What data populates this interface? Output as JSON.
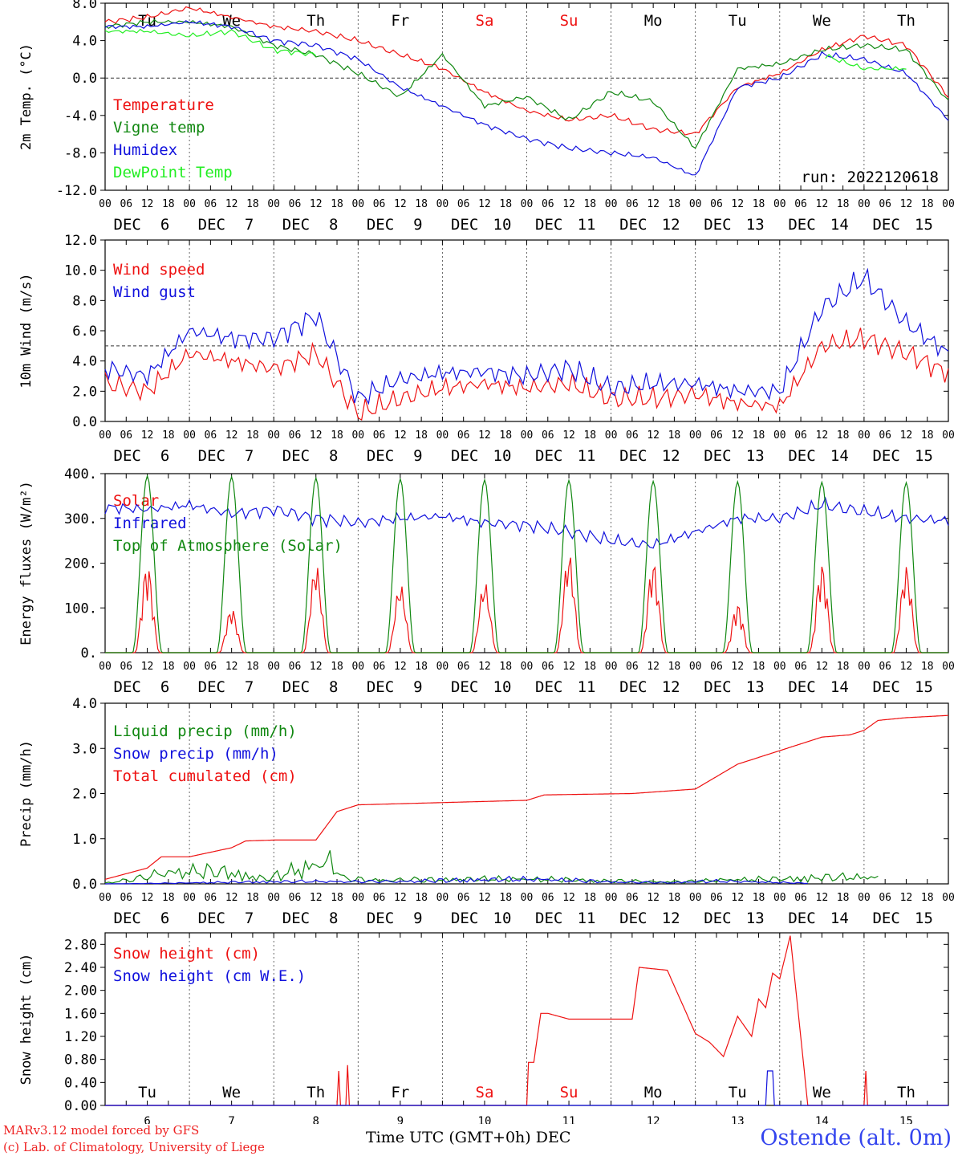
{
  "colors": {
    "red": "#ee1111",
    "green": "#118811",
    "blue": "#1111dd",
    "lime": "#22ee22",
    "axis": "#000000",
    "grid": "#444444"
  },
  "days": [
    "6",
    "7",
    "8",
    "9",
    "10",
    "11",
    "12",
    "13",
    "14",
    "15"
  ],
  "month": "DEC",
  "weekdays": [
    {
      "label": "Tu",
      "color": "#000000"
    },
    {
      "label": "We",
      "color": "#000000"
    },
    {
      "label": "Th",
      "color": "#000000"
    },
    {
      "label": "Fr",
      "color": "#000000"
    },
    {
      "label": "Sa",
      "color": "#ee1111"
    },
    {
      "label": "Su",
      "color": "#ee1111"
    },
    {
      "label": "Mo",
      "color": "#000000"
    },
    {
      "label": "Tu",
      "color": "#000000"
    },
    {
      "label": "We",
      "color": "#000000"
    },
    {
      "label": "Th",
      "color": "#000000"
    }
  ],
  "hour_labels": [
    "00",
    "06",
    "12",
    "18"
  ],
  "footer": {
    "model": "MARv3.12 model forced by GFS",
    "lab": "(c) Lab. of Climatology, University of Liege",
    "xlabel": "Time UTC (GMT+0h) DEC",
    "station": "Ostende (alt. 0m)"
  },
  "chart_data": [
    {
      "type": "line",
      "ylabel": "2m Temp. (°C)",
      "ylim": [
        -12,
        8
      ],
      "yticks": [
        "8.0",
        "4.0",
        "0.0",
        "-4.0",
        "-8.0",
        "-12.0"
      ],
      "run_label": "run: 2022120618",
      "grid": "vertical dotted at 00 UTC; dashed line at 0",
      "series": [
        {
          "name": "Temperature",
          "color": "#ee1111",
          "x": [
            0,
            12,
            24,
            36,
            48,
            60,
            72,
            84,
            96,
            108,
            120,
            132,
            144,
            156,
            168,
            180,
            192,
            204,
            216,
            228,
            240
          ],
          "y": [
            6.0,
            6.5,
            7.5,
            6.5,
            5.5,
            5.0,
            4.0,
            2.5,
            1.0,
            -1.5,
            -3.5,
            -4.5,
            -4.0,
            -5.5,
            -6.0,
            -1.0,
            0.5,
            3.0,
            4.5,
            3.5,
            -2.0
          ]
        },
        {
          "name": "Vigne temp",
          "color": "#118811",
          "x": [
            0,
            12,
            24,
            36,
            48,
            60,
            72,
            84,
            96,
            108,
            120,
            132,
            144,
            156,
            168,
            180,
            192,
            204,
            216,
            228,
            240
          ],
          "y": [
            5.5,
            6.0,
            6.0,
            5.5,
            3.5,
            2.5,
            0.5,
            -2.0,
            2.5,
            -3.0,
            -2.0,
            -4.5,
            -1.5,
            -2.5,
            -7.5,
            1.0,
            1.5,
            3.0,
            3.5,
            3.0,
            -2.5
          ]
        },
        {
          "name": "Humidex",
          "color": "#1111dd",
          "x": [
            0,
            12,
            24,
            36,
            48,
            60,
            72,
            84,
            96,
            108,
            120,
            132,
            144,
            156,
            168,
            180,
            192,
            204,
            216,
            228,
            240
          ],
          "y": [
            5.5,
            5.5,
            6.0,
            5.5,
            4.0,
            3.5,
            2.0,
            -1.0,
            -3.0,
            -5.0,
            -6.5,
            -7.5,
            -8.0,
            -8.5,
            -10.5,
            -1.0,
            0.0,
            2.5,
            2.0,
            0.5,
            -4.5
          ]
        },
        {
          "name": "DewPoint Temp",
          "color": "#22ee22",
          "x": [
            0,
            12,
            24,
            36,
            48,
            60,
            72,
            84,
            96,
            108,
            120,
            132,
            144,
            156,
            168,
            180,
            192,
            204,
            216,
            228,
            240
          ],
          "y": [
            5.0,
            5.0,
            4.5,
            5.0,
            3.0,
            2.5,
            null,
            null,
            null,
            null,
            null,
            null,
            null,
            null,
            null,
            null,
            null,
            2.5,
            1.0,
            1.0,
            null
          ]
        }
      ]
    },
    {
      "type": "line",
      "ylabel": "10m Wind (m/s)",
      "ylim": [
        0,
        12
      ],
      "yticks": [
        "12.0",
        "10.0",
        "8.0",
        "6.0",
        "4.0",
        "2.0",
        "0.0"
      ],
      "grid": "vertical dotted at 00 UTC; dashed line at 5",
      "series": [
        {
          "name": "Wind speed",
          "color": "#ee1111",
          "x": [
            0,
            12,
            24,
            36,
            48,
            60,
            72,
            84,
            96,
            108,
            120,
            132,
            144,
            156,
            168,
            180,
            192,
            204,
            216,
            228,
            240
          ],
          "y": [
            2.5,
            2.0,
            4.5,
            4.0,
            3.5,
            4.5,
            0.5,
            1.5,
            2.2,
            2.5,
            2.2,
            2.5,
            1.5,
            1.5,
            1.8,
            1.2,
            1.0,
            5.0,
            5.5,
            4.5,
            3.2
          ]
        },
        {
          "name": "Wind gust",
          "color": "#1111dd",
          "x": [
            0,
            12,
            24,
            36,
            48,
            60,
            72,
            84,
            96,
            108,
            120,
            132,
            144,
            156,
            168,
            180,
            192,
            204,
            216,
            228,
            240
          ],
          "y": [
            3.5,
            3.0,
            6.0,
            5.5,
            5.5,
            7.0,
            1.5,
            2.8,
            3.2,
            3.3,
            3.0,
            3.5,
            2.2,
            2.5,
            2.5,
            2.0,
            2.0,
            7.5,
            9.5,
            6.5,
            4.5
          ]
        }
      ]
    },
    {
      "type": "line",
      "ylabel": "Energy fluxes (W/m²)",
      "ylim": [
        0,
        400
      ],
      "yticks": [
        "400.",
        "300.",
        "200.",
        "100.",
        "0."
      ],
      "grid": "vertical dotted at 00 UTC",
      "series": [
        {
          "name": "Solar",
          "color": "#ee1111",
          "daily_peak": [
            200,
            100,
            200,
            155,
            160,
            225,
            205,
            110,
            200,
            195
          ]
        },
        {
          "name": "Infrared",
          "color": "#1111dd",
          "x": [
            0,
            12,
            24,
            36,
            48,
            60,
            72,
            84,
            96,
            108,
            120,
            132,
            144,
            156,
            168,
            180,
            192,
            204,
            216,
            228,
            240
          ],
          "y": [
            325,
            320,
            330,
            310,
            320,
            300,
            290,
            300,
            305,
            290,
            285,
            270,
            250,
            240,
            270,
            300,
            300,
            330,
            315,
            300,
            295
          ]
        },
        {
          "name": "Top of Atmosphere (Solar)",
          "color": "#118811",
          "daily_peak": [
            395,
            393,
            390,
            388,
            386,
            385,
            383,
            382,
            381,
            380
          ]
        }
      ]
    },
    {
      "type": "line",
      "ylabel": "Precip (mm/h)",
      "ylim": [
        0,
        4
      ],
      "yticks": [
        "4.0",
        "3.0",
        "2.0",
        "1.0",
        "0.0"
      ],
      "grid": "vertical dotted at 00 UTC",
      "series": [
        {
          "name": "Liquid precip (mm/h)",
          "color": "#118811",
          "x": [
            0,
            10,
            17,
            34,
            46,
            64,
            66,
            68,
            120,
            168,
            175,
            192,
            200,
            214,
            220
          ],
          "y": [
            0.05,
            0.25,
            0.5,
            0.4,
            0.15,
            0.85,
            0.6,
            0.2,
            0.15,
            0.1,
            0.15,
            0.15,
            0.2,
            0.25,
            0.3
          ]
        },
        {
          "name": "Snow precip (mm/h)",
          "color": "#1111dd",
          "x": [
            0,
            66,
            124,
            160,
            170,
            180,
            200
          ],
          "y": [
            0.0,
            0.1,
            0.15,
            0.05,
            0.1,
            0.08,
            0.02
          ]
        },
        {
          "name": "Total cumulated (cm)",
          "color": "#ee1111",
          "x": [
            0,
            12,
            16,
            24,
            36,
            40,
            48,
            60,
            66,
            72,
            120,
            125,
            150,
            168,
            180,
            192,
            204,
            212,
            216,
            220,
            228,
            240
          ],
          "y": [
            0.1,
            0.35,
            0.6,
            0.6,
            0.8,
            0.95,
            0.97,
            0.97,
            1.6,
            1.75,
            1.85,
            1.97,
            2.0,
            2.1,
            2.65,
            2.95,
            3.25,
            3.3,
            3.4,
            3.62,
            3.68,
            3.73
          ]
        }
      ]
    },
    {
      "type": "line",
      "ylabel": "Snow height (cm)",
      "ylim": [
        0,
        3.0
      ],
      "yticks": [
        "2.80",
        "2.40",
        "2.00",
        "1.60",
        "1.20",
        "0.80",
        "0.40",
        "0.00"
      ],
      "grid": "vertical dotted at 00 UTC",
      "series": [
        {
          "name": "Snow height (cm)",
          "color": "#ee1111",
          "x": [
            0,
            66,
            66.5,
            67,
            68.5,
            69,
            69.5,
            120,
            120.5,
            122,
            124,
            126,
            132,
            144,
            150,
            152,
            160,
            168,
            172,
            176,
            180,
            184,
            186,
            188,
            190,
            192,
            195,
            200,
            216,
            216.5,
            217,
            240
          ],
          "y": [
            0,
            0,
            0.6,
            0,
            0,
            0.7,
            0,
            0,
            0.75,
            0.75,
            1.6,
            1.6,
            1.5,
            1.5,
            1.5,
            2.4,
            2.35,
            1.25,
            1.1,
            0.85,
            1.55,
            1.2,
            1.85,
            1.7,
            2.3,
            2.2,
            2.95,
            0,
            0,
            0.6,
            0,
            0
          ]
        },
        {
          "name": "Snow height (cm W.E.)",
          "color": "#1111dd",
          "x": [
            0,
            188,
            188.5,
            190,
            190.5,
            240
          ],
          "y": [
            0,
            0,
            0.6,
            0.6,
            0,
            0
          ]
        }
      ]
    }
  ]
}
